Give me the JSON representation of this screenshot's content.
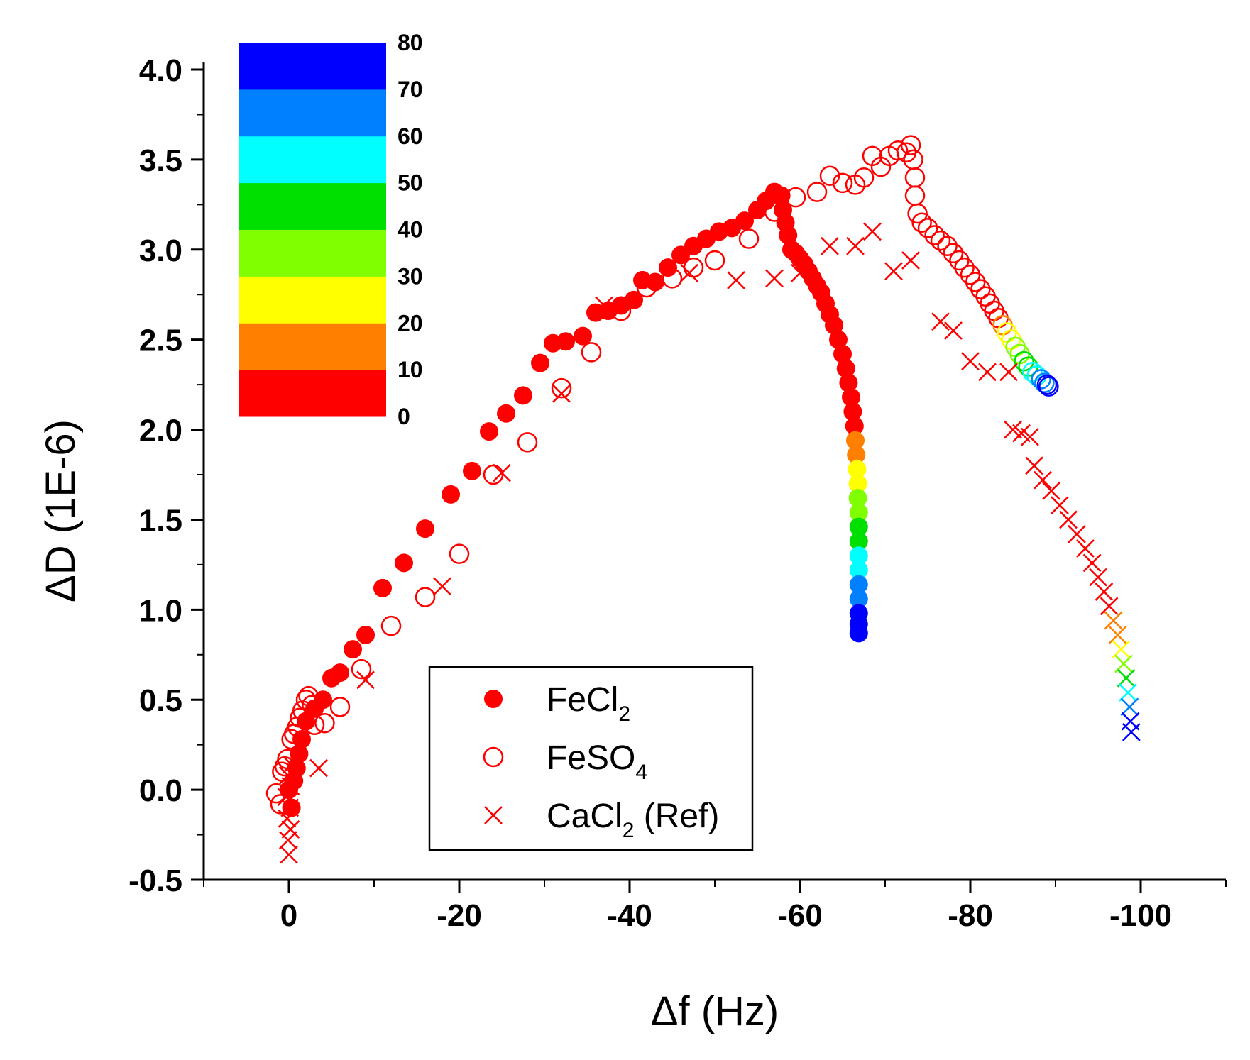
{
  "chart_data": {
    "type": "scatter",
    "xlabel": "Δf (Hz)",
    "ylabel": "ΔD (1E-6)",
    "xlim": [
      10,
      -110
    ],
    "x_axis_reversed": true,
    "ylim": [
      -0.5,
      4.0
    ],
    "x_ticks": [
      0,
      -20,
      -40,
      -60,
      -80,
      -100
    ],
    "x_tick_labels": [
      "0",
      "-20",
      "-40",
      "-60",
      "-80",
      "-100"
    ],
    "y_ticks": [
      -0.5,
      0.0,
      0.5,
      1.0,
      1.5,
      2.0,
      2.5,
      3.0,
      3.5,
      4.0
    ],
    "y_tick_labels": [
      "-0.5",
      "0.0",
      "0.5",
      "1.0",
      "1.5",
      "2.0",
      "2.5",
      "3.0",
      "3.5",
      "4.0"
    ],
    "grid": false,
    "color_scale": {
      "label_values": [
        "0",
        "10",
        "20",
        "30",
        "40",
        "50",
        "60",
        "70",
        "80"
      ],
      "colors": [
        "#ff0000",
        "#ff8000",
        "#ffff00",
        "#80ff00",
        "#00e000",
        "#00ffff",
        "#0080ff",
        "#0000ff"
      ]
    },
    "legend": {
      "position": "bottom-center",
      "entries": [
        {
          "text": "FeCl",
          "sub": "2",
          "suffix": "",
          "marker": "filled-circle"
        },
        {
          "text": "FeSO",
          "sub": "4",
          "suffix": "",
          "marker": "open-circle"
        },
        {
          "text": "CaCl",
          "sub": "2",
          "suffix": " (Ref)",
          "marker": "cross"
        }
      ]
    },
    "series": [
      {
        "name": "FeCl2",
        "marker": "filled-circle",
        "points": [
          [
            0,
            0.0
          ],
          [
            -0.3,
            -0.1
          ],
          [
            -0.6,
            0.05
          ],
          [
            -0.9,
            0.12
          ],
          [
            -1.2,
            0.2
          ],
          [
            -1.5,
            0.28
          ],
          [
            -2.0,
            0.38
          ],
          [
            -3.0,
            0.45
          ],
          [
            -4,
            0.5
          ],
          [
            -5,
            0.62
          ],
          [
            -6,
            0.65
          ],
          [
            -7.5,
            0.78
          ],
          [
            -9,
            0.86
          ],
          [
            -11,
            1.12
          ],
          [
            -13.5,
            1.26
          ],
          [
            -16,
            1.45
          ],
          [
            -19,
            1.64
          ],
          [
            -21.5,
            1.77
          ],
          [
            -23.5,
            1.99
          ],
          [
            -25.5,
            2.09
          ],
          [
            -27.5,
            2.19
          ],
          [
            -29.5,
            2.37
          ],
          [
            -31,
            2.48
          ],
          [
            -32.5,
            2.49
          ],
          [
            -34.5,
            2.52
          ],
          [
            -36,
            2.65
          ],
          [
            -37.5,
            2.66
          ],
          [
            -39,
            2.69
          ],
          [
            -40.5,
            2.72
          ],
          [
            -41.5,
            2.83
          ],
          [
            -43,
            2.82
          ],
          [
            -44.5,
            2.9
          ],
          [
            -46,
            2.97
          ],
          [
            -47.5,
            3.02
          ],
          [
            -49,
            3.06
          ],
          [
            -50.5,
            3.1
          ],
          [
            -52,
            3.12
          ],
          [
            -53.5,
            3.16
          ],
          [
            -55,
            3.22
          ],
          [
            -56,
            3.27
          ],
          [
            -57,
            3.32
          ],
          [
            -57.8,
            3.3
          ],
          [
            -58.0,
            3.22
          ],
          [
            -58.3,
            3.15
          ],
          [
            -58.6,
            3.08
          ],
          [
            -59.0,
            3.0
          ],
          [
            -59.5,
            2.98
          ],
          [
            -60.0,
            2.95
          ],
          [
            -60.5,
            2.92
          ],
          [
            -61.0,
            2.88
          ],
          [
            -61.5,
            2.84
          ],
          [
            -62.0,
            2.8
          ],
          [
            -62.5,
            2.76
          ],
          [
            -63.0,
            2.7
          ],
          [
            -63.5,
            2.64
          ],
          [
            -64.0,
            2.58
          ],
          [
            -64.5,
            2.5
          ],
          [
            -65.0,
            2.42
          ],
          [
            -65.4,
            2.34
          ],
          [
            -65.7,
            2.26
          ],
          [
            -66.0,
            2.18
          ],
          [
            -66.2,
            2.1
          ],
          [
            -66.4,
            2.02
          ],
          [
            -66.5,
            1.94
          ],
          [
            -66.6,
            1.86
          ],
          [
            -66.7,
            1.78
          ],
          [
            -66.8,
            1.7
          ],
          [
            -66.8,
            1.62
          ],
          [
            -66.9,
            1.54
          ],
          [
            -66.9,
            1.46
          ],
          [
            -66.9,
            1.38
          ],
          [
            -66.9,
            1.3
          ],
          [
            -66.9,
            1.22
          ],
          [
            -66.9,
            1.14
          ],
          [
            -66.9,
            1.06
          ],
          [
            -66.9,
            0.98
          ],
          [
            -66.9,
            0.92
          ],
          [
            -66.9,
            0.87
          ]
        ]
      },
      {
        "name": "FeSO4",
        "marker": "open-circle",
        "points": [
          [
            1.5,
            -0.02
          ],
          [
            1.0,
            -0.08
          ],
          [
            0.8,
            0.1
          ],
          [
            0.5,
            0.13
          ],
          [
            0.2,
            0.17
          ],
          [
            -0.3,
            0.28
          ],
          [
            -0.6,
            0.31
          ],
          [
            -1.0,
            0.35
          ],
          [
            -1.3,
            0.4
          ],
          [
            -1.6,
            0.44
          ],
          [
            -2.0,
            0.5
          ],
          [
            -2.3,
            0.52
          ],
          [
            -2.7,
            0.47
          ],
          [
            -3.0,
            0.36
          ],
          [
            -4.2,
            0.37
          ],
          [
            -6,
            0.46
          ],
          [
            -8.5,
            0.67
          ],
          [
            -12,
            0.91
          ],
          [
            -16,
            1.07
          ],
          [
            -20,
            1.31
          ],
          [
            -24,
            1.75
          ],
          [
            -28,
            1.93
          ],
          [
            -32,
            2.23
          ],
          [
            -35.5,
            2.43
          ],
          [
            -39,
            2.66
          ],
          [
            -42,
            2.79
          ],
          [
            -45,
            2.84
          ],
          [
            -47.5,
            2.9
          ],
          [
            -50,
            2.94
          ],
          [
            -54,
            3.06
          ],
          [
            -57,
            3.21
          ],
          [
            -59.5,
            3.29
          ],
          [
            -62,
            3.32
          ],
          [
            -63.5,
            3.41
          ],
          [
            -65,
            3.37
          ],
          [
            -66.5,
            3.36
          ],
          [
            -67.5,
            3.4
          ],
          [
            -68.5,
            3.52
          ],
          [
            -69.5,
            3.46
          ],
          [
            -70.5,
            3.52
          ],
          [
            -71.5,
            3.55
          ],
          [
            -72.5,
            3.54
          ],
          [
            -73,
            3.58
          ],
          [
            -73.3,
            3.5
          ],
          [
            -73.5,
            3.4
          ],
          [
            -73.5,
            3.3
          ],
          [
            -73.8,
            3.2
          ],
          [
            -74.3,
            3.15
          ],
          [
            -75,
            3.12
          ],
          [
            -75.8,
            3.08
          ],
          [
            -76.5,
            3.05
          ],
          [
            -77.3,
            3.02
          ],
          [
            -78,
            2.98
          ],
          [
            -78.7,
            2.94
          ],
          [
            -79.3,
            2.9
          ],
          [
            -80,
            2.86
          ],
          [
            -80.6,
            2.82
          ],
          [
            -81.2,
            2.78
          ],
          [
            -81.8,
            2.74
          ],
          [
            -82.3,
            2.7
          ],
          [
            -82.8,
            2.66
          ],
          [
            -83.3,
            2.62
          ],
          [
            -83.8,
            2.58
          ],
          [
            -84.3,
            2.54
          ],
          [
            -84.8,
            2.5
          ],
          [
            -85.3,
            2.46
          ],
          [
            -85.8,
            2.42
          ],
          [
            -86.3,
            2.38
          ],
          [
            -86.8,
            2.35
          ],
          [
            -87.3,
            2.32
          ],
          [
            -87.8,
            2.3
          ],
          [
            -88.3,
            2.28
          ],
          [
            -88.7,
            2.26
          ],
          [
            -89.0,
            2.25
          ],
          [
            -89.2,
            2.24
          ]
        ]
      },
      {
        "name": "CaCl2 (Ref)",
        "marker": "cross",
        "points": [
          [
            0,
            -0.36
          ],
          [
            0.1,
            -0.28
          ],
          [
            -0.2,
            -0.22
          ],
          [
            0.2,
            -0.16
          ],
          [
            -0.1,
            -0.1
          ],
          [
            0.3,
            -0.04
          ],
          [
            -0.2,
            0.02
          ],
          [
            0.1,
            0.08
          ],
          [
            -0.3,
            0.14
          ],
          [
            -3.5,
            0.12
          ],
          [
            -9,
            0.61
          ],
          [
            -18,
            1.13
          ],
          [
            -25,
            1.76
          ],
          [
            -32,
            2.2
          ],
          [
            -37,
            2.69
          ],
          [
            -47,
            2.87
          ],
          [
            -52.5,
            2.83
          ],
          [
            -57,
            2.84
          ],
          [
            -60,
            2.87
          ],
          [
            -63.5,
            3.02
          ],
          [
            -66.5,
            3.02
          ],
          [
            -68.5,
            3.1
          ],
          [
            -71,
            2.88
          ],
          [
            -73,
            2.94
          ],
          [
            -76.5,
            2.6
          ],
          [
            -78,
            2.55
          ],
          [
            -80,
            2.38
          ],
          [
            -82,
            2.32
          ],
          [
            -84.5,
            2.32
          ],
          [
            -85,
            2.0
          ],
          [
            -86,
            1.98
          ],
          [
            -87,
            1.96
          ],
          [
            -87.5,
            1.8
          ],
          [
            -88.5,
            1.72
          ],
          [
            -89.5,
            1.66
          ],
          [
            -90.5,
            1.58
          ],
          [
            -91.5,
            1.5
          ],
          [
            -92.5,
            1.42
          ],
          [
            -93.5,
            1.34
          ],
          [
            -94.3,
            1.26
          ],
          [
            -95,
            1.18
          ],
          [
            -95.7,
            1.1
          ],
          [
            -96.3,
            1.02
          ],
          [
            -96.8,
            0.94
          ],
          [
            -97.3,
            0.86
          ],
          [
            -97.7,
            0.78
          ],
          [
            -98.0,
            0.7
          ],
          [
            -98.3,
            0.62
          ],
          [
            -98.5,
            0.54
          ],
          [
            -98.7,
            0.46
          ],
          [
            -98.8,
            0.38
          ],
          [
            -98.9,
            0.32
          ]
        ]
      }
    ]
  }
}
